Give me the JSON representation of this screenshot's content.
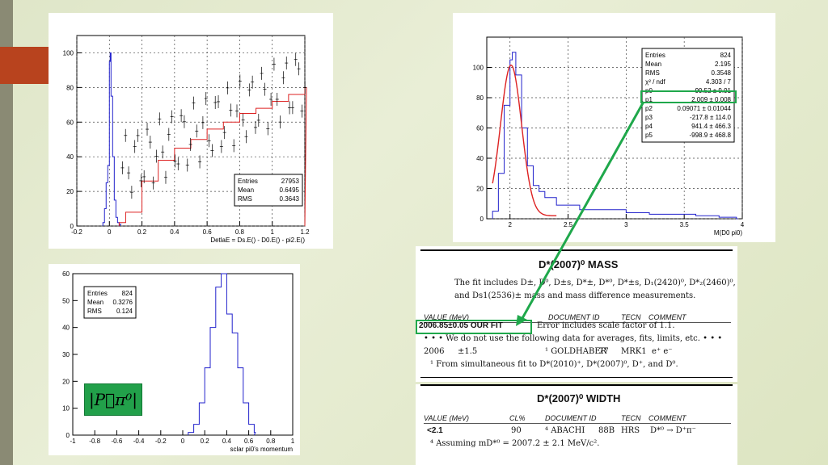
{
  "colors": {
    "accent": "#a63a1a",
    "green": "#1fa84b",
    "hist_blue": "#2222cc",
    "hist_red": "#dd2222"
  },
  "plot1": {
    "xlabel": "DetlaE = Ds.E() - D0.E() - pi2.E()",
    "xticks": [
      "-0.2",
      "0",
      "0.2",
      "0.4",
      "0.6",
      "0.8",
      "1",
      "1.2"
    ],
    "yticks": [
      "0",
      "20",
      "40",
      "60",
      "80",
      "100"
    ],
    "stats": [
      [
        "Entries",
        "27953"
      ],
      [
        "Mean",
        "0.6495"
      ],
      [
        "RMS",
        "0.3643"
      ]
    ]
  },
  "plot2": {
    "xlabel": "M(D0 pi0)",
    "xticks": [
      "2",
      "2.5",
      "3",
      "3.5",
      "4"
    ],
    "yticks": [
      "0",
      "20",
      "40",
      "60",
      "80",
      "100"
    ],
    "stats": [
      [
        "Entries",
        "824"
      ],
      [
        "Mean",
        "2.195"
      ],
      [
        "RMS",
        "0.3548"
      ],
      [
        "χ² / ndf",
        "4.303 / 7"
      ],
      [
        "p0",
        "99.52 ± 9.91"
      ],
      [
        "p1",
        "2.009 ± 0.008"
      ],
      [
        "p2",
        "0.09071 ± 0.01044"
      ],
      [
        "p3",
        "-217.8 ± 114.0"
      ],
      [
        "p4",
        "941.4 ± 466.3"
      ],
      [
        "p5",
        "-998.9 ± 468.8"
      ]
    ]
  },
  "plot3": {
    "xlabel": "sclar pi0's momentum",
    "xticks": [
      "-1",
      "-0.8",
      "-0.6",
      "-0.4",
      "-0.2",
      "0",
      "0.2",
      "0.4",
      "0.6",
      "0.8",
      "1"
    ],
    "yticks": [
      "0",
      "10",
      "20",
      "30",
      "40",
      "50",
      "60"
    ],
    "stats": [
      [
        "Entries",
        "824"
      ],
      [
        "Mean",
        "0.3276"
      ],
      [
        "RMS",
        "0.124"
      ]
    ],
    "badge": "|P⃗π⁰|"
  },
  "doc1": {
    "title": "D*(2007)⁰ MASS",
    "line1": "The fit includes D±, D⁰, D±s, D*±, D*⁰, D*±s, D₁(2420)⁰, D*₂(2460)⁰,",
    "line2": "and Ds1(2536)± mass and mass difference measurements.",
    "col_value": "VALUE (MeV)",
    "col_doc": "DOCUMENT ID",
    "col_tecn": "TECN",
    "col_comment": "COMMENT",
    "fit_value": "2006.85±0.05 OUR FIT",
    "fit_note": "Error includes scale factor of 1.1.",
    "nouse": "• • • We do not use the following data for averages, fits, limits, etc. • • •",
    "row": [
      "2006",
      "±1.5",
      "¹ GOLDHABER",
      "77",
      "MRK1",
      "e⁺ e⁻"
    ],
    "footnote": "¹ From simultaneous fit to D*(2010)⁺, D*(2007)⁰, D⁺, and D⁰."
  },
  "doc2": {
    "title": "D*(2007)⁰ WIDTH",
    "col_value": "VALUE (MeV)",
    "col_cl": "CL%",
    "col_doc": "DOCUMENT ID",
    "col_tecn": "TECN",
    "col_comment": "COMMENT",
    "row": [
      "<2.1",
      "90",
      "⁴ ABACHI",
      "88B",
      "HRS",
      "D*⁰ → D⁺π⁻"
    ],
    "footnote": "⁴ Assuming mD*⁰ = 2007.2 ± 2.1 MeV/c²."
  },
  "chart_data": [
    {
      "type": "bar",
      "xlabel": "DetlaE = Ds.E() - D0.E() - pi2.E()",
      "xlim": [
        -0.2,
        1.2
      ],
      "ylim": [
        0,
        110
      ],
      "series": [
        {
          "x": [
            -0.04,
            -0.03,
            -0.02,
            -0.01,
            0.0,
            0.005,
            0.01,
            0.02,
            0.03,
            0.04,
            0.05,
            0.06
          ],
          "values": [
            2,
            10,
            25,
            35,
            95,
            100,
            75,
            40,
            15,
            5,
            2,
            1
          ]
        },
        {
          "x": [
            0.06,
            0.1,
            0.2,
            0.3,
            0.4,
            0.5,
            0.6,
            0.7,
            0.8,
            0.9,
            1.0,
            1.1,
            1.2
          ],
          "values": [
            2,
            8,
            26,
            38,
            45,
            50,
            56,
            60,
            65,
            68,
            72,
            76,
            80
          ]
        }
      ]
    },
    {
      "type": "bar",
      "xlabel": "M(D0 pi0)",
      "xlim": [
        1.8,
        4.0
      ],
      "ylim": [
        0,
        120
      ],
      "x": [
        1.85,
        1.9,
        1.95,
        2.0,
        2.02,
        2.05,
        2.1,
        2.15,
        2.2,
        2.25,
        2.3,
        2.4,
        2.6,
        2.8,
        3.0,
        3.2,
        3.4,
        3.6,
        3.8,
        3.95
      ],
      "values": [
        5,
        30,
        75,
        105,
        110,
        95,
        60,
        35,
        22,
        18,
        14,
        9,
        6,
        6,
        4,
        3,
        3,
        2,
        1,
        0
      ]
    },
    {
      "type": "bar",
      "xlabel": "sclar pi0's momentum",
      "xlim": [
        -1,
        1
      ],
      "ylim": [
        0,
        60
      ],
      "x": [
        0.05,
        0.1,
        0.15,
        0.2,
        0.25,
        0.3,
        0.35,
        0.4,
        0.45,
        0.5,
        0.55,
        0.6,
        0.65
      ],
      "values": [
        1,
        4,
        12,
        25,
        40,
        55,
        60,
        45,
        38,
        25,
        12,
        4,
        1
      ]
    }
  ]
}
